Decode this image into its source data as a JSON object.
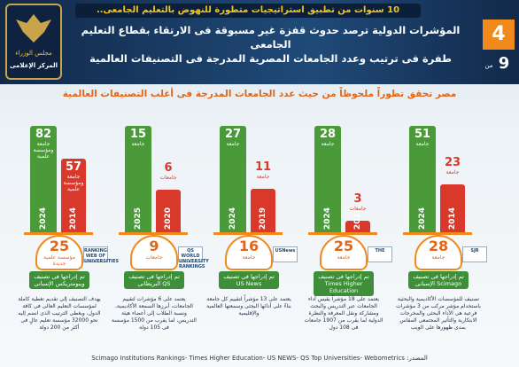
{
  "header": {
    "banner": "10 سنوات من تطبيق استراتيجيات متطورة للنهوض بالتعليم الجامعى..",
    "title_line1": "المؤشرات الدولية ترصد حدوث قفزة غير مسبوقة فى الارتقاء بقطاع التعليم الجامعى",
    "title_line2": "طفرة فى ترتيب وعدد الجامعات المصرية المدرجة فى التصنيفات العالمية",
    "page": "4",
    "of": "من",
    "total": "9",
    "logo_line1": "مجلس الوزراء",
    "logo_line2": "المركز الإعلامى"
  },
  "subtitle": "مصر تحقق تطوراً ملحوظاً من حيث عدد الجامعات المدرجة فى أغلب التصنيفات العالمية",
  "panels": [
    {
      "latest_value": 82,
      "latest_unit": "جامعة ومؤسسة علمية",
      "latest_year": "2024",
      "earlier_value": 57,
      "earlier_unit": "جامعة ومؤسسة علمية",
      "earlier_year": "2014",
      "new_count": 25,
      "new_unit": "مؤسسة علمية جديدة",
      "new_text": "تم إدراجها فى تصنيف ويبومتريكس الإسبانى",
      "logo": "RANKING WEB OF UNIVERSITIES",
      "description": "يهدف التصنيف إلى تقديم تغطية كاملة لمؤسسات التعليم العالى فى كافة الدول، ويغطى الترتيب الذى انضم إليه نحو 32000 مؤسسة تعليم عالٍ فى أكثر من 200 دولة"
    },
    {
      "latest_value": 15,
      "latest_unit": "جامعة",
      "latest_year": "2025",
      "earlier_value": 6,
      "earlier_unit": "جامعات",
      "earlier_year": "2020",
      "new_count": 9,
      "new_unit": "جامعات",
      "new_text": "تم إدراجها فى تصنيف QS البريطانى",
      "logo": "QS WORLD UNIVERSITY RANKINGS",
      "description": "يعتمد على 6 مؤشرات لتقييم الجامعات، أبرزها السمعة الأكاديمية، ونسبة الطلاب إلى أعضاء هيئة التدريس، لما يقرب من 1500 مؤسسة فى 105 دولة"
    },
    {
      "latest_value": 27,
      "latest_unit": "جامعة",
      "latest_year": "2024",
      "earlier_value": 11,
      "earlier_unit": "جامعة",
      "earlier_year": "2019",
      "new_count": 16,
      "new_unit": "جامعة",
      "new_text": "تم إدراجها فى تصنيف US News",
      "logo": "USNews",
      "description": "يعتمد على 13 مؤشراً لتقييم كل جامعة بناءً على أدائها البحثى وسمعتها العالمية والإقليمية"
    },
    {
      "latest_value": 28,
      "latest_unit": "جامعة",
      "latest_year": "2024",
      "earlier_value": 3,
      "earlier_unit": "جامعات",
      "earlier_year": "2016",
      "new_count": 25,
      "new_unit": "جامعة",
      "new_text": "تم إدراجها فى تصنيف Times Higher Education",
      "logo": "THE",
      "description": "يعتمد على 18 مؤشراً يقيس أداء الجامعات عبر التدريس والبحث ومشاركة ونقل المعرفة والنظرة الدولية لما يقرب من 1907 جامعات فى 108 دول"
    },
    {
      "latest_value": 51,
      "latest_unit": "جامعة",
      "latest_year": "2024",
      "earlier_value": 23,
      "earlier_unit": "جامعة",
      "earlier_year": "2014",
      "new_count": 28,
      "new_unit": "جامعة",
      "new_text": "تم إدراجها فى تصنيف Scimago الإسبانى",
      "logo": "SJR",
      "description": "تصنيف للمؤسسات الأكاديمية والبحثية باستخدام مؤشر مركب من 3 مؤشرات فرعية هى الأداء البحثى والمخرجات الابتكارية والتأثير المجتمعى المقاس بمدى ظهورها على الويب"
    }
  ],
  "source": "المصدر: Scimago Institutions Rankings- Times Higher Education- US NEWS- QS Top Universities- Webometrics"
}
